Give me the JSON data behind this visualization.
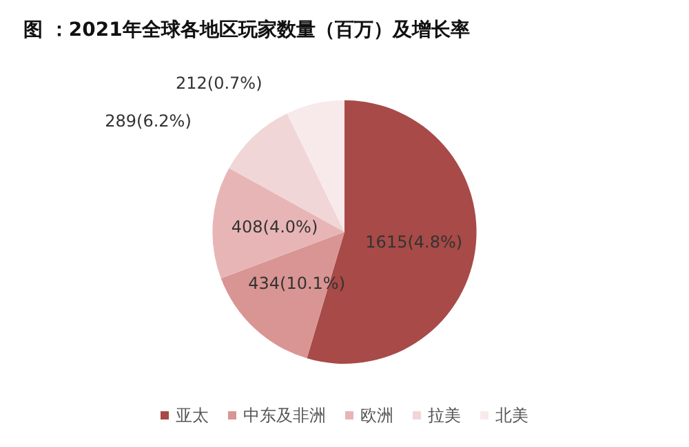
{
  "chart_data": {
    "type": "pie",
    "title": "图 ：2021年全球各地区玩家数量（百万）及增长率",
    "categories": [
      "亚太",
      "中东及非洲",
      "欧洲",
      "拉美",
      "北美"
    ],
    "values": [
      1615,
      434,
      408,
      289,
      212
    ],
    "value_labels": [
      "1615(4.8%)",
      "434(10.1%)",
      "408(4.0%)",
      "289(6.2%)",
      "212(0.7%)"
    ],
    "colors": [
      "#a84a47",
      "#d99593",
      "#e8b5b6",
      "#f0d6d7",
      "#f8eaea"
    ],
    "legend": "bottom"
  }
}
